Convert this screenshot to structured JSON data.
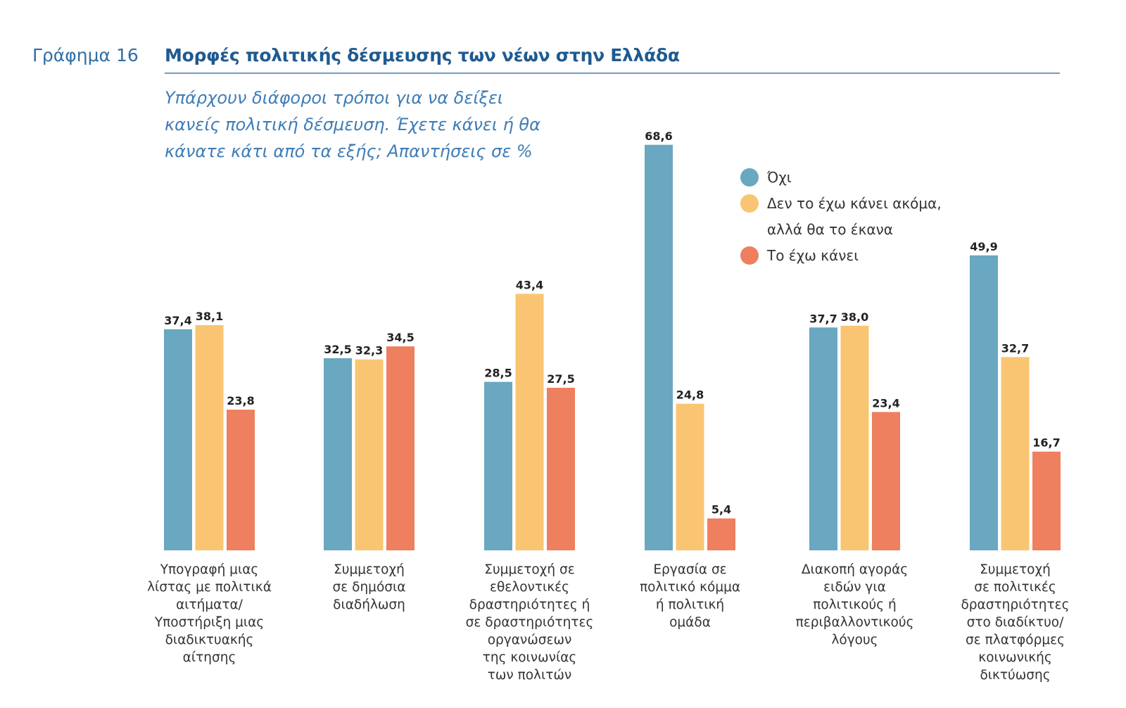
{
  "figure": {
    "label": "Γράφημα 16",
    "title": "Μορφές πολιτικής δέσμευσης των νέων στην Ελλάδα",
    "subtitle": "Υπάρχουν διάφοροι τρόποι για να δείξει κανείς πολιτική δέσμευση. Έχετε κάνει ή θα κάνατε κάτι από τα εξής; Απαντήσεις σε %"
  },
  "chart_data": {
    "type": "bar",
    "title": "Μορφές πολιτικής δέσμευσης των νέων στην Ελλάδα",
    "xlabel": "",
    "ylabel": "%",
    "ylim": [
      0,
      70
    ],
    "grid": false,
    "legend_position": "top-right",
    "categories": [
      "Υπογραφή μιας\nλίστας με πολιτικά\nαιτήματα/\nΥποστήριξη μιας\nδιαδικτυακής\nαίτησης",
      "Συμμετοχή\nσε δημόσια\nδιαδήλωση",
      "Συμμετοχή σε\nεθελοντικές\nδραστηριότητες ή\nσε δραστηριότητες\nοργανώσεων\nτης κοινωνίας\nτων πολιτών",
      "Εργασία σε\nπολιτικό κόμμα\nή πολιτική\nομάδα",
      "Διακοπή αγοράς\nειδών για\nπολιτικούς ή\nπεριβαλλοντικούς\nλόγους",
      "Συμμετοχή\nσε πολιτικές\nδραστηριότητες\nστο διαδίκτυο/\nσε πλατφόρμες\nκοινωνικής\nδικτύωσης"
    ],
    "series": [
      {
        "name": "Όχι",
        "color": "#6aa7c0",
        "values": [
          37.4,
          32.5,
          28.5,
          68.6,
          37.7,
          49.9
        ],
        "labels": [
          "37,4",
          "32,5",
          "28,5",
          "68,6",
          "37,7",
          "49,9"
        ]
      },
      {
        "name": "Δεν το έχω κάνει ακόμα, αλλά θα το έκανα",
        "color": "#fac572",
        "values": [
          38.1,
          32.3,
          43.4,
          24.8,
          38.0,
          32.7
        ],
        "labels": [
          "38,1",
          "32,3",
          "43,4",
          "24,8",
          "38,0",
          "32,7"
        ]
      },
      {
        "name": "Το έχω κάνει",
        "color": "#ee7f5f",
        "values": [
          23.8,
          34.5,
          27.5,
          5.4,
          23.4,
          16.7
        ],
        "labels": [
          "23,8",
          "34,5",
          "27,5",
          "5,4",
          "23,4",
          "16,7"
        ]
      }
    ]
  }
}
